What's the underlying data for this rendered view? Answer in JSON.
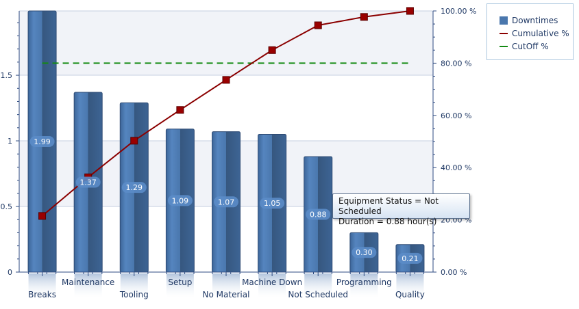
{
  "chart_data": {
    "type": "bar",
    "categories": [
      "Breaks",
      "Maintenance",
      "Tooling",
      "Setup",
      "No Material",
      "Machine Down",
      "Not Scheduled",
      "Programming",
      "Quality"
    ],
    "series": [
      {
        "name": "Downtimes",
        "type": "bar",
        "values": [
          1.99,
          1.37,
          1.29,
          1.09,
          1.07,
          1.05,
          0.88,
          0.3,
          0.21
        ],
        "color": "#4a77ad",
        "labels": [
          "1.99",
          "1.37",
          "1.29",
          "1.09",
          "1.07",
          "1.05",
          "0.88",
          "0.30",
          "0.21"
        ]
      },
      {
        "name": "Cumulative %",
        "type": "line",
        "axis": "right",
        "values": [
          21.5,
          36.3,
          50.3,
          62.1,
          73.6,
          85.0,
          94.5,
          97.7,
          100.0
        ],
        "color": "#8b0000"
      },
      {
        "name": "CutOff %",
        "type": "line",
        "axis": "right",
        "dashed": true,
        "values": [
          80,
          80,
          80,
          80,
          80,
          80,
          80,
          80,
          80
        ],
        "color": "#138a13"
      }
    ],
    "ylim": [
      0,
      1.99
    ],
    "y_ticks": [
      "0",
      "0.5",
      "1",
      "1.5"
    ],
    "y_tick_values": [
      0,
      0.5,
      1,
      1.5
    ],
    "y2lim": [
      0,
      100
    ],
    "y2_ticks": [
      "0.00 %",
      "20.00 %",
      "40.00 %",
      "60.00 %",
      "80.00 %",
      "100.00 %"
    ],
    "y2_tick_values": [
      0,
      20,
      40,
      60,
      80,
      100
    ],
    "grid": true,
    "legend": "top-right",
    "tooltip": {
      "line1": "Equipment Status = Not Scheduled",
      "line2": "Duration = 0.88 hour(s)"
    }
  }
}
